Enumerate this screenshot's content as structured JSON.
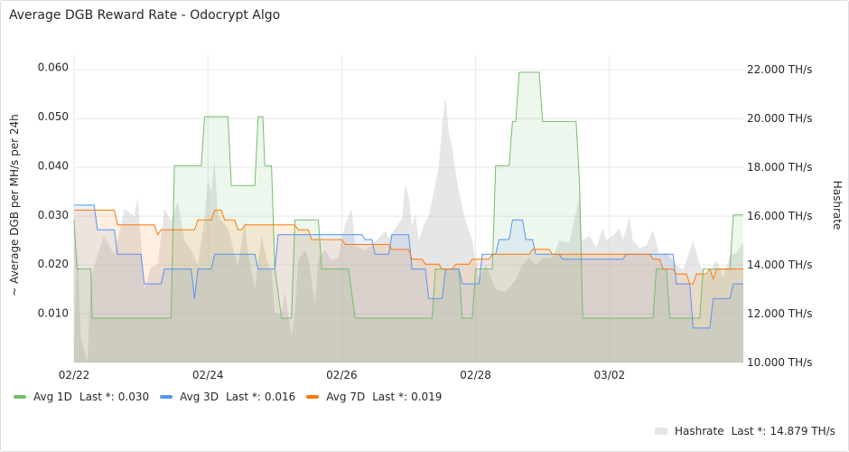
{
  "panel": {
    "title": "Average DGB Reward Rate - Odocrypt Algo"
  },
  "chart_data": {
    "type": "line",
    "title": "Average DGB Reward Rate - Odocrypt Algo",
    "ylabel_left": "~ Average DGB per MH/s per 24h",
    "ylabel_right": "Hashrate",
    "ylim_left": [
      0.0,
      0.0625
    ],
    "ylim_right": [
      10.0,
      22.6
    ],
    "left_ticks": [
      "0.010",
      "0.020",
      "0.030",
      "0.040",
      "0.050",
      "0.060"
    ],
    "left_tick_values": [
      0.01,
      0.02,
      0.03,
      0.04,
      0.05,
      0.06
    ],
    "right_ticks": [
      "10.000 TH/s",
      "12.000 TH/s",
      "14.000 TH/s",
      "16.000 TH/s",
      "18.000 TH/s",
      "20.000 TH/s",
      "22.000 TH/s"
    ],
    "right_tick_values": [
      10,
      12,
      14,
      16,
      18,
      20,
      22
    ],
    "x_ticks": [
      "02/22",
      "02/24",
      "02/26",
      "02/28",
      "03/02"
    ],
    "x_tick_values": [
      0,
      2,
      4,
      6,
      8
    ],
    "xlim": [
      0,
      10.0
    ],
    "grid": true,
    "legend_position": "bottom",
    "series": [
      {
        "name": "Avg 1D",
        "axis": "left",
        "color": "#73bf69",
        "last": "0.030",
        "points": [
          [
            0,
            0.029
          ],
          [
            0.04,
            0.019
          ],
          [
            0.25,
            0.019
          ],
          [
            0.27,
            0.009
          ],
          [
            1.45,
            0.009
          ],
          [
            1.5,
            0.04
          ],
          [
            1.9,
            0.04
          ],
          [
            1.95,
            0.05
          ],
          [
            2.3,
            0.05
          ],
          [
            2.35,
            0.036
          ],
          [
            2.7,
            0.036
          ],
          [
            2.75,
            0.05
          ],
          [
            2.82,
            0.05
          ],
          [
            2.85,
            0.04
          ],
          [
            2.95,
            0.04
          ],
          [
            3.0,
            0.019
          ],
          [
            3.1,
            0.009
          ],
          [
            3.25,
            0.009
          ],
          [
            3.3,
            0.029
          ],
          [
            3.65,
            0.029
          ],
          [
            3.7,
            0.019
          ],
          [
            4.1,
            0.019
          ],
          [
            4.2,
            0.009
          ],
          [
            5.35,
            0.009
          ],
          [
            5.4,
            0.019
          ],
          [
            5.75,
            0.019
          ],
          [
            5.8,
            0.009
          ],
          [
            5.95,
            0.009
          ],
          [
            6.0,
            0.019
          ],
          [
            6.25,
            0.019
          ],
          [
            6.3,
            0.04
          ],
          [
            6.5,
            0.04
          ],
          [
            6.55,
            0.049
          ],
          [
            6.6,
            0.049
          ],
          [
            6.65,
            0.059
          ],
          [
            6.95,
            0.059
          ],
          [
            7.0,
            0.049
          ],
          [
            7.5,
            0.049
          ],
          [
            7.55,
            0.037
          ],
          [
            7.6,
            0.009
          ],
          [
            8.65,
            0.009
          ],
          [
            8.7,
            0.019
          ],
          [
            8.85,
            0.019
          ],
          [
            8.9,
            0.009
          ],
          [
            9.35,
            0.009
          ],
          [
            9.4,
            0.019
          ],
          [
            9.8,
            0.019
          ],
          [
            9.85,
            0.03
          ],
          [
            10.0,
            0.03
          ]
        ]
      },
      {
        "name": "Avg 3D",
        "axis": "left",
        "color": "#5794f2",
        "last": "0.016",
        "points": [
          [
            0,
            0.032
          ],
          [
            0.3,
            0.032
          ],
          [
            0.35,
            0.027
          ],
          [
            0.6,
            0.027
          ],
          [
            0.65,
            0.022
          ],
          [
            1.0,
            0.022
          ],
          [
            1.05,
            0.016
          ],
          [
            1.3,
            0.016
          ],
          [
            1.35,
            0.019
          ],
          [
            1.75,
            0.019
          ],
          [
            1.8,
            0.013
          ],
          [
            1.85,
            0.019
          ],
          [
            2.05,
            0.019
          ],
          [
            2.1,
            0.022
          ],
          [
            2.7,
            0.022
          ],
          [
            2.75,
            0.019
          ],
          [
            3.0,
            0.019
          ],
          [
            3.05,
            0.026
          ],
          [
            4.3,
            0.026
          ],
          [
            4.35,
            0.025
          ],
          [
            4.45,
            0.025
          ],
          [
            4.5,
            0.022
          ],
          [
            4.7,
            0.022
          ],
          [
            4.75,
            0.026
          ],
          [
            5.0,
            0.026
          ],
          [
            5.05,
            0.019
          ],
          [
            5.25,
            0.019
          ],
          [
            5.3,
            0.013
          ],
          [
            5.5,
            0.013
          ],
          [
            5.55,
            0.019
          ],
          [
            5.75,
            0.019
          ],
          [
            5.8,
            0.016
          ],
          [
            6.05,
            0.016
          ],
          [
            6.1,
            0.022
          ],
          [
            6.3,
            0.022
          ],
          [
            6.35,
            0.025
          ],
          [
            6.5,
            0.025
          ],
          [
            6.55,
            0.029
          ],
          [
            6.7,
            0.029
          ],
          [
            6.75,
            0.025
          ],
          [
            6.85,
            0.025
          ],
          [
            6.9,
            0.022
          ],
          [
            7.25,
            0.022
          ],
          [
            7.3,
            0.021
          ],
          [
            8.2,
            0.021
          ],
          [
            8.25,
            0.022
          ],
          [
            8.6,
            0.022
          ],
          [
            8.65,
            0.022
          ],
          [
            8.95,
            0.022
          ],
          [
            9.0,
            0.016
          ],
          [
            9.2,
            0.016
          ],
          [
            9.25,
            0.007
          ],
          [
            9.5,
            0.007
          ],
          [
            9.55,
            0.013
          ],
          [
            9.8,
            0.013
          ],
          [
            9.85,
            0.016
          ],
          [
            10.0,
            0.016
          ]
        ]
      },
      {
        "name": "Avg 7D",
        "axis": "left",
        "color": "#ff780a",
        "last": "0.019",
        "points": [
          [
            0,
            0.031
          ],
          [
            0.6,
            0.031
          ],
          [
            0.65,
            0.028
          ],
          [
            1.2,
            0.028
          ],
          [
            1.25,
            0.026
          ],
          [
            1.3,
            0.027
          ],
          [
            1.8,
            0.027
          ],
          [
            1.85,
            0.029
          ],
          [
            2.05,
            0.029
          ],
          [
            2.1,
            0.031
          ],
          [
            2.2,
            0.031
          ],
          [
            2.25,
            0.029
          ],
          [
            2.4,
            0.029
          ],
          [
            2.45,
            0.027
          ],
          [
            2.5,
            0.027
          ],
          [
            2.55,
            0.028
          ],
          [
            3.3,
            0.028
          ],
          [
            3.35,
            0.027
          ],
          [
            3.5,
            0.027
          ],
          [
            3.55,
            0.025
          ],
          [
            4.0,
            0.025
          ],
          [
            4.05,
            0.024
          ],
          [
            4.7,
            0.024
          ],
          [
            4.75,
            0.023
          ],
          [
            5.0,
            0.023
          ],
          [
            5.05,
            0.021
          ],
          [
            5.2,
            0.021
          ],
          [
            5.25,
            0.02
          ],
          [
            5.45,
            0.02
          ],
          [
            5.5,
            0.019
          ],
          [
            5.65,
            0.019
          ],
          [
            5.7,
            0.02
          ],
          [
            5.9,
            0.02
          ],
          [
            5.95,
            0.021
          ],
          [
            6.2,
            0.021
          ],
          [
            6.25,
            0.022
          ],
          [
            6.8,
            0.022
          ],
          [
            6.85,
            0.023
          ],
          [
            7.1,
            0.023
          ],
          [
            7.15,
            0.022
          ],
          [
            8.6,
            0.022
          ],
          [
            8.65,
            0.021
          ],
          [
            8.75,
            0.021
          ],
          [
            8.8,
            0.019
          ],
          [
            8.95,
            0.019
          ],
          [
            9.0,
            0.018
          ],
          [
            9.15,
            0.018
          ],
          [
            9.2,
            0.016
          ],
          [
            9.25,
            0.016
          ],
          [
            9.3,
            0.018
          ],
          [
            9.45,
            0.018
          ],
          [
            9.5,
            0.019
          ],
          [
            9.55,
            0.017
          ],
          [
            9.6,
            0.019
          ],
          [
            10.0,
            0.019
          ]
        ]
      },
      {
        "name": "Hashrate",
        "axis": "right",
        "color": "#c7c7c7",
        "last": "14.879 TH/s",
        "points": [
          [
            0,
            10.4
          ],
          [
            0.05,
            15.0
          ],
          [
            0.1,
            11.0
          ],
          [
            0.15,
            10.5
          ],
          [
            0.2,
            10.0
          ],
          [
            0.25,
            13.5
          ],
          [
            0.35,
            14.4
          ],
          [
            0.45,
            15.2
          ],
          [
            0.6,
            14.4
          ],
          [
            0.75,
            16.3
          ],
          [
            0.9,
            16.0
          ],
          [
            0.95,
            16.8
          ],
          [
            1.0,
            15.0
          ],
          [
            1.05,
            13.0
          ],
          [
            1.15,
            13.9
          ],
          [
            1.25,
            14.0
          ],
          [
            1.35,
            16.3
          ],
          [
            1.45,
            15.8
          ],
          [
            1.55,
            16.6
          ],
          [
            1.65,
            15.0
          ],
          [
            1.75,
            14.6
          ],
          [
            1.85,
            14.0
          ],
          [
            1.95,
            15.9
          ],
          [
            2.0,
            17.5
          ],
          [
            2.05,
            17.0
          ],
          [
            2.1,
            18.3
          ],
          [
            2.15,
            16.0
          ],
          [
            2.2,
            15.8
          ],
          [
            2.3,
            15.5
          ],
          [
            2.45,
            13.9
          ],
          [
            2.55,
            15.8
          ],
          [
            2.6,
            14.5
          ],
          [
            2.7,
            13.0
          ],
          [
            2.8,
            15.2
          ],
          [
            2.9,
            14.0
          ],
          [
            2.95,
            13.8
          ],
          [
            3.0,
            12.0
          ],
          [
            3.1,
            12.0
          ],
          [
            3.15,
            12.9
          ],
          [
            3.25,
            11.1
          ],
          [
            3.3,
            12.0
          ],
          [
            3.35,
            14.2
          ],
          [
            3.45,
            14.6
          ],
          [
            3.5,
            14.3
          ],
          [
            3.6,
            12.4
          ],
          [
            3.65,
            14.3
          ],
          [
            3.75,
            14.6
          ],
          [
            3.85,
            14.2
          ],
          [
            3.95,
            14.3
          ],
          [
            4.05,
            15.7
          ],
          [
            4.15,
            16.3
          ],
          [
            4.2,
            14.8
          ],
          [
            4.35,
            14.6
          ],
          [
            4.45,
            14.8
          ],
          [
            4.55,
            15.1
          ],
          [
            4.65,
            15.4
          ],
          [
            4.7,
            15.1
          ],
          [
            4.8,
            15.5
          ],
          [
            4.9,
            15.9
          ],
          [
            4.95,
            17.3
          ],
          [
            5.0,
            16.8
          ],
          [
            5.05,
            15.6
          ],
          [
            5.1,
            16.1
          ],
          [
            5.15,
            15.0
          ],
          [
            5.25,
            15.8
          ],
          [
            5.3,
            16.0
          ],
          [
            5.45,
            18.0
          ],
          [
            5.5,
            19.8
          ],
          [
            5.55,
            20.9
          ],
          [
            5.6,
            19.4
          ],
          [
            5.65,
            18.8
          ],
          [
            5.7,
            17.8
          ],
          [
            5.75,
            17.0
          ],
          [
            5.85,
            15.8
          ],
          [
            5.95,
            15.0
          ],
          [
            6.05,
            13.4
          ],
          [
            6.15,
            14.0
          ],
          [
            6.3,
            13.0
          ],
          [
            6.45,
            12.9
          ],
          [
            6.6,
            13.4
          ],
          [
            6.7,
            14.0
          ],
          [
            6.8,
            14.3
          ],
          [
            6.9,
            14.0
          ],
          [
            7.0,
            14.3
          ],
          [
            7.15,
            14.3
          ],
          [
            7.25,
            15.0
          ],
          [
            7.4,
            14.9
          ],
          [
            7.55,
            16.8
          ],
          [
            7.6,
            15.0
          ],
          [
            7.7,
            15.2
          ],
          [
            7.8,
            14.7
          ],
          [
            7.9,
            15.5
          ],
          [
            7.95,
            15.0
          ],
          [
            8.05,
            15.2
          ],
          [
            8.15,
            15.5
          ],
          [
            8.2,
            15.0
          ],
          [
            8.3,
            16.0
          ],
          [
            8.35,
            15.0
          ],
          [
            8.45,
            14.7
          ],
          [
            8.55,
            14.8
          ],
          [
            8.65,
            15.4
          ],
          [
            8.75,
            14.4
          ],
          [
            8.85,
            14.5
          ],
          [
            9.0,
            14.0
          ],
          [
            9.1,
            13.8
          ],
          [
            9.25,
            15.0
          ],
          [
            9.35,
            14.0
          ],
          [
            9.45,
            13.5
          ],
          [
            9.6,
            14.2
          ],
          [
            9.7,
            13.5
          ],
          [
            9.8,
            14.4
          ],
          [
            9.9,
            14.5
          ],
          [
            10.0,
            14.9
          ]
        ]
      }
    ]
  },
  "legend": {
    "items": [
      {
        "name": "Avg 1D",
        "last_label": "Last *:",
        "last": "0.030",
        "color": "#73bf69"
      },
      {
        "name": "Avg 3D",
        "last_label": "Last *:",
        "last": "0.016",
        "color": "#5794f2"
      },
      {
        "name": "Avg 7D",
        "last_label": "Last *:",
        "last": "0.019",
        "color": "#ff780a"
      }
    ],
    "hashrate": {
      "name": "Hashrate",
      "last_label": "Last *:",
      "last": "14.879 TH/s",
      "color": "#e0e0e0"
    }
  }
}
